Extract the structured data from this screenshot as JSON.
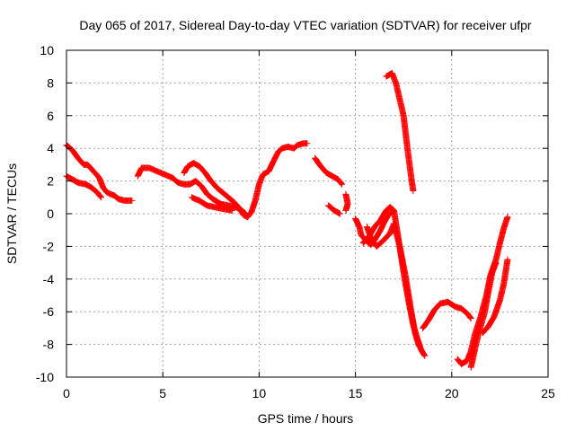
{
  "chart_data": {
    "type": "scatter",
    "title": "Day 065 of 2017, Sidereal Day-to-day VTEC variation (SDTVAR) for receiver ufpr",
    "xlabel": "GPS time / hours",
    "ylabel": "SDTVAR / TECUs",
    "xlim": [
      0,
      25
    ],
    "ylim": [
      -10,
      10
    ],
    "xticks": [
      0,
      5,
      10,
      15,
      20,
      25
    ],
    "yticks": [
      -10,
      -8,
      -6,
      -4,
      -2,
      0,
      2,
      4,
      6,
      8,
      10
    ],
    "grid": true,
    "marker": "plus",
    "marker_color": "#ff0000",
    "tracks": [
      [
        [
          0.0,
          4.2
        ],
        [
          0.3,
          3.9
        ],
        [
          0.6,
          3.4
        ],
        [
          0.9,
          3.0
        ],
        [
          1.1,
          3.0
        ],
        [
          1.4,
          2.6
        ],
        [
          1.7,
          2.2
        ],
        [
          1.9,
          1.6
        ],
        [
          2.1,
          1.3
        ],
        [
          2.3,
          1.2
        ],
        [
          2.5,
          1.1
        ],
        [
          2.7,
          0.9
        ],
        [
          3.0,
          0.8
        ],
        [
          3.2,
          0.8
        ],
        [
          3.4,
          0.8
        ]
      ],
      [
        [
          0.0,
          2.3
        ],
        [
          0.3,
          2.1
        ],
        [
          0.6,
          1.9
        ],
        [
          1.0,
          1.8
        ],
        [
          1.3,
          1.6
        ],
        [
          1.6,
          1.3
        ],
        [
          1.8,
          1.0
        ]
      ],
      [
        [
          3.7,
          2.3
        ],
        [
          3.9,
          2.8
        ],
        [
          4.3,
          2.8
        ],
        [
          4.7,
          2.6
        ],
        [
          5.1,
          2.4
        ],
        [
          5.5,
          2.2
        ],
        [
          5.8,
          1.9
        ],
        [
          6.1,
          1.8
        ],
        [
          6.4,
          1.8
        ],
        [
          6.7,
          2.0
        ],
        [
          7.0,
          1.7
        ],
        [
          7.3,
          1.2
        ],
        [
          7.6,
          0.9
        ],
        [
          8.0,
          0.6
        ],
        [
          8.4,
          0.5
        ],
        [
          8.8,
          0.4
        ],
        [
          9.1,
          0.2
        ],
        [
          9.3,
          0.0
        ]
      ],
      [
        [
          6.1,
          2.5
        ],
        [
          6.3,
          2.9
        ],
        [
          6.6,
          3.1
        ],
        [
          6.9,
          2.9
        ],
        [
          7.2,
          2.5
        ],
        [
          7.5,
          2.0
        ],
        [
          7.8,
          1.6
        ],
        [
          8.1,
          1.3
        ],
        [
          8.4,
          1.0
        ],
        [
          8.7,
          0.7
        ],
        [
          9.0,
          0.3
        ],
        [
          9.2,
          -0.1
        ],
        [
          9.4,
          -0.2
        ],
        [
          9.6,
          0.1
        ],
        [
          9.8,
          0.8
        ],
        [
          10.0,
          1.8
        ],
        [
          10.2,
          2.4
        ],
        [
          10.5,
          2.6
        ],
        [
          10.7,
          3.1
        ],
        [
          11.0,
          3.8
        ],
        [
          11.2,
          4.0
        ],
        [
          11.5,
          4.1
        ],
        [
          11.8,
          4.0
        ],
        [
          12.0,
          4.2
        ],
        [
          12.3,
          4.3
        ],
        [
          12.5,
          4.3
        ]
      ],
      [
        [
          6.5,
          1.0
        ],
        [
          6.9,
          0.8
        ],
        [
          7.3,
          0.5
        ],
        [
          7.7,
          0.4
        ],
        [
          8.1,
          0.3
        ],
        [
          8.6,
          0.2
        ]
      ],
      [
        [
          12.9,
          3.4
        ],
        [
          13.2,
          2.9
        ],
        [
          13.5,
          2.5
        ],
        [
          13.8,
          2.3
        ],
        [
          14.1,
          2.1
        ],
        [
          14.3,
          1.8
        ]
      ],
      [
        [
          13.6,
          0.5
        ],
        [
          13.9,
          0.2
        ],
        [
          14.2,
          0.0
        ]
      ],
      [
        [
          14.5,
          1.2
        ],
        [
          14.6,
          0.6
        ],
        [
          14.5,
          0.2
        ]
      ],
      [
        [
          15.0,
          -0.3
        ],
        [
          15.2,
          -0.8
        ],
        [
          15.3,
          -1.3
        ],
        [
          15.6,
          -1.7
        ],
        [
          15.8,
          -1.9
        ],
        [
          16.0,
          -1.6
        ],
        [
          16.3,
          -1.0
        ],
        [
          16.5,
          -0.5
        ],
        [
          16.7,
          -0.1
        ],
        [
          16.9,
          0.1
        ]
      ],
      [
        [
          15.4,
          -1.8
        ],
        [
          15.7,
          -1.4
        ],
        [
          16.0,
          -0.8
        ],
        [
          16.3,
          -0.4
        ],
        [
          16.6,
          0.2
        ],
        [
          16.8,
          0.4
        ],
        [
          17.0,
          0.2
        ],
        [
          17.2,
          -1.3
        ],
        [
          17.4,
          -2.8
        ],
        [
          17.6,
          -4.3
        ],
        [
          17.8,
          -5.6
        ],
        [
          18.0,
          -6.8
        ],
        [
          18.2,
          -7.6
        ],
        [
          18.4,
          -8.3
        ],
        [
          18.6,
          -8.7
        ]
      ],
      [
        [
          15.6,
          -0.8
        ],
        [
          15.8,
          -1.5
        ],
        [
          16.1,
          -2.0
        ],
        [
          16.4,
          -1.7
        ],
        [
          16.8,
          -1.2
        ],
        [
          17.0,
          -0.6
        ],
        [
          17.3,
          -2.0
        ],
        [
          17.6,
          -3.8
        ],
        [
          17.9,
          -6.0
        ],
        [
          18.1,
          -7.3
        ],
        [
          18.3,
          -8.1
        ]
      ],
      [
        [
          16.6,
          8.4
        ],
        [
          16.9,
          8.6
        ],
        [
          17.1,
          8.0
        ],
        [
          17.3,
          7.0
        ],
        [
          17.5,
          6.0
        ],
        [
          17.6,
          5.0
        ],
        [
          17.7,
          4.0
        ],
        [
          17.8,
          3.1
        ],
        [
          17.9,
          2.2
        ],
        [
          18.0,
          1.4
        ]
      ],
      [
        [
          18.5,
          -7.0
        ],
        [
          18.8,
          -6.5
        ],
        [
          19.1,
          -5.9
        ],
        [
          19.4,
          -5.5
        ],
        [
          19.8,
          -5.4
        ],
        [
          20.2,
          -5.7
        ],
        [
          20.5,
          -5.8
        ],
        [
          20.8,
          -6.1
        ],
        [
          21.0,
          -6.4
        ]
      ],
      [
        [
          20.3,
          -8.9
        ],
        [
          20.5,
          -9.2
        ],
        [
          20.8,
          -9.0
        ],
        [
          21.0,
          -8.4
        ],
        [
          21.2,
          -7.4
        ],
        [
          21.5,
          -6.3
        ],
        [
          21.8,
          -5.0
        ],
        [
          22.0,
          -3.8
        ],
        [
          22.3,
          -2.8
        ],
        [
          22.5,
          -1.8
        ],
        [
          22.7,
          -0.9
        ],
        [
          22.9,
          -0.2
        ]
      ],
      [
        [
          21.0,
          -9.4
        ],
        [
          21.2,
          -8.3
        ],
        [
          21.4,
          -7.3
        ],
        [
          21.7,
          -6.1
        ],
        [
          21.9,
          -4.8
        ],
        [
          22.1,
          -3.6
        ],
        [
          22.3,
          -3.0
        ]
      ],
      [
        [
          21.6,
          -7.3
        ],
        [
          21.9,
          -6.9
        ],
        [
          22.2,
          -6.3
        ],
        [
          22.5,
          -5.3
        ],
        [
          22.7,
          -4.3
        ],
        [
          22.9,
          -2.8
        ]
      ]
    ]
  }
}
